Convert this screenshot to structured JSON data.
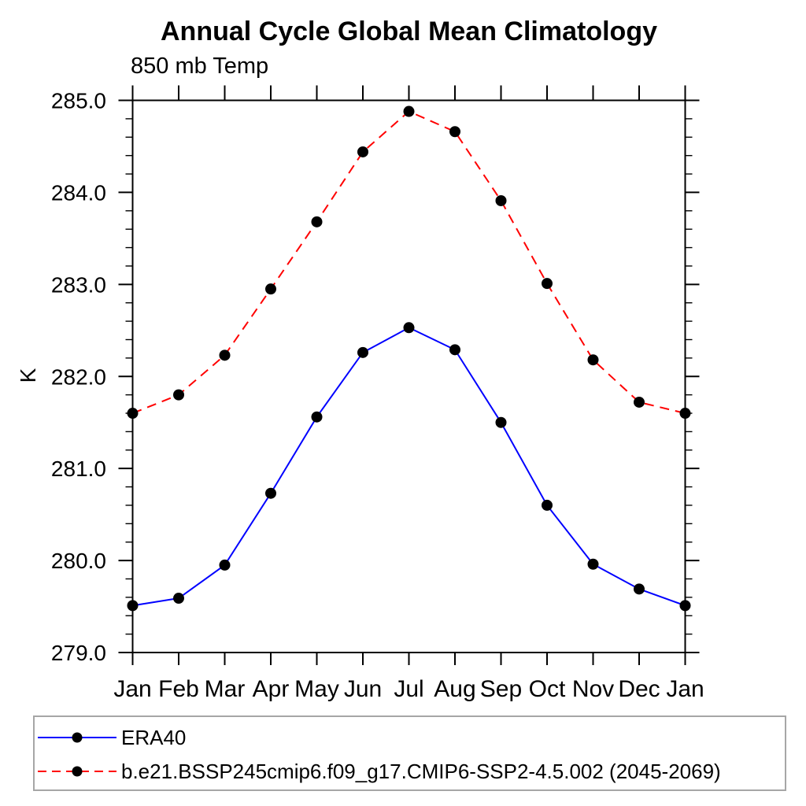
{
  "chart_data": {
    "type": "line",
    "title": "Annual Cycle Global Mean Climatology",
    "subtitle": "850 mb Temp",
    "ylabel": "K",
    "xlabel": "",
    "categories": [
      "Jan",
      "Feb",
      "Mar",
      "Apr",
      "May",
      "Jun",
      "Jul",
      "Aug",
      "Sep",
      "Oct",
      "Nov",
      "Dec",
      "Jan"
    ],
    "ylim": [
      279.0,
      285.0
    ],
    "ytick_interval": 1.0,
    "yminor_interval": 0.2,
    "ytick_label_format": "one_decimal",
    "grid": false,
    "legend_position": "bottom-left-box",
    "series": [
      {
        "name": "ERA40",
        "color": "#0000ff",
        "line_style": "solid",
        "marker": "circle",
        "marker_color": "#000000",
        "values": [
          279.51,
          279.59,
          279.95,
          280.73,
          281.56,
          282.26,
          282.53,
          282.29,
          281.5,
          280.6,
          279.96,
          279.69,
          279.51
        ]
      },
      {
        "name": "b.e21.BSSP245cmip6.f09_g17.CMIP6-SSP2-4.5.002 (2045-2069)",
        "color": "#ff0000",
        "line_style": "dashed",
        "marker": "circle",
        "marker_color": "#000000",
        "values": [
          281.6,
          281.8,
          282.23,
          282.95,
          283.68,
          284.44,
          284.88,
          284.66,
          283.91,
          283.01,
          282.18,
          281.72,
          281.6
        ]
      }
    ]
  },
  "colors": {
    "axis": "#000000",
    "text": "#000000",
    "era40_line": "#0000ff",
    "model_line": "#ff0000",
    "marker": "#000000",
    "legend_border": "#a6a6a6",
    "background": "#ffffff"
  }
}
